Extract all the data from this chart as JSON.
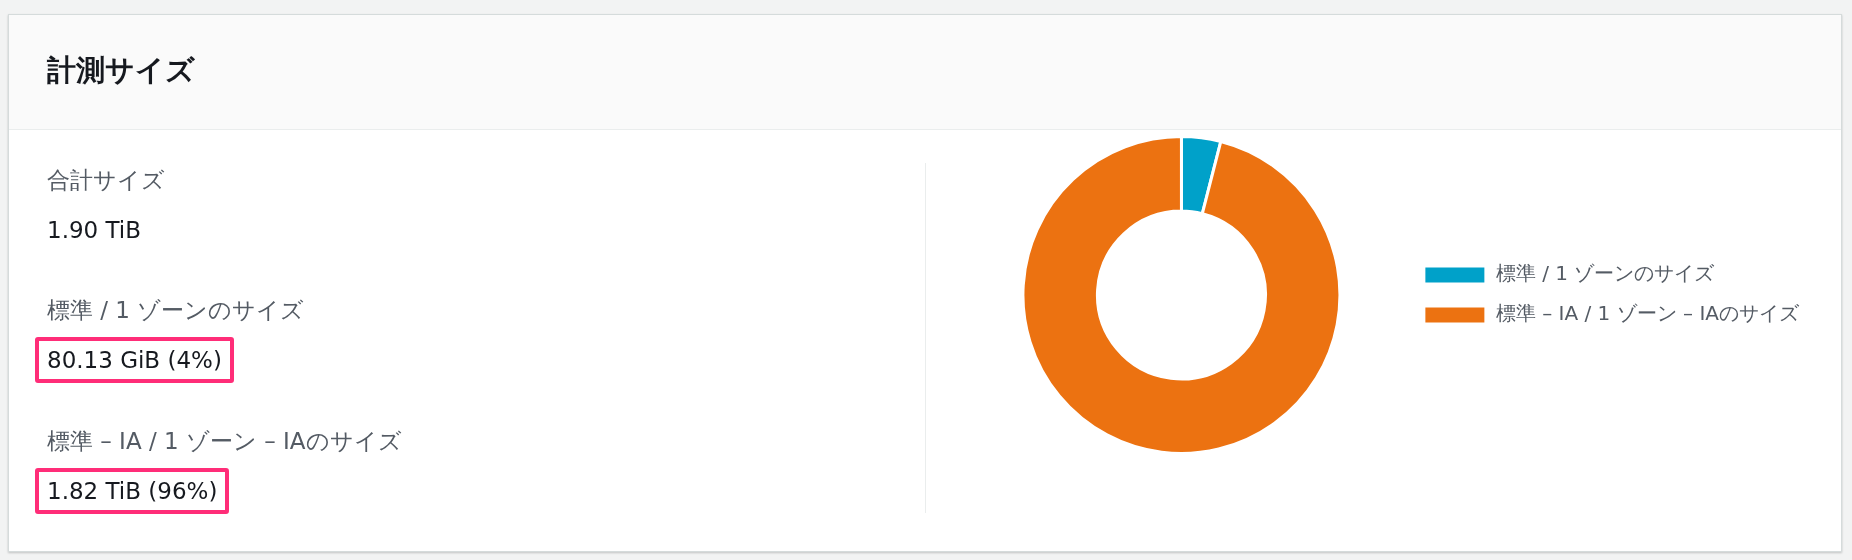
{
  "chart_data": [
    {
      "type": "other",
      "title": "計測サイズ",
      "annotations": [
        "合計サイズ",
        "1.90 TiB",
        "標準 / 1 ゾーンのサイズ",
        "80.13 GiB (4%)",
        "標準 – IA / 1 ゾーン – IAのサイズ",
        "1.82 TiB (96%)"
      ]
    },
    {
      "type": "donut",
      "categories": [
        "標準 / 1 ゾーンのサイズ",
        "標準 – IA / 1 ゾーン – IAのサイズ"
      ],
      "values": [
        4,
        96
      ],
      "colors": [
        "#00a1c9",
        "#ec7211"
      ],
      "legend": "right"
    }
  ]
}
